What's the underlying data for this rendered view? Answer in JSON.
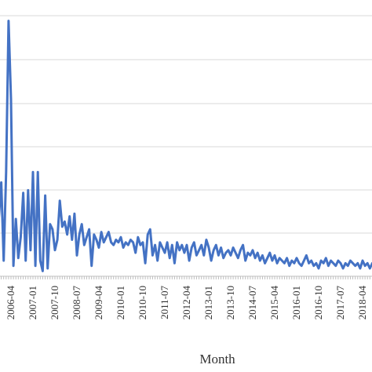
{
  "chart_data": {
    "type": "line",
    "title": "",
    "xlabel": "Month",
    "ylabel": "",
    "grid": true,
    "line_color": "#4472C4",
    "grid_color": "#D9D9D9",
    "ylim": [
      0,
      100
    ],
    "xlim": [
      "2005-08",
      "2019-01"
    ],
    "tick_labels": [
      "2006-04",
      "2007-01",
      "2007-10",
      "2008-07",
      "2009-04",
      "2010-01",
      "2010-10",
      "2011-07",
      "2012-04",
      "2013-01",
      "2013-10",
      "2014-07",
      "2015-04",
      "2016-01",
      "2016-10",
      "2017-07",
      "2018-04"
    ],
    "series": [
      {
        "values": [
          [
            "2005-08",
            32
          ],
          [
            "2005-09",
            12
          ],
          [
            "2005-10",
            48
          ],
          [
            "2005-11",
            22
          ],
          [
            "2005-12",
            36
          ],
          [
            "2006-01",
            6
          ],
          [
            "2006-02",
            40
          ],
          [
            "2006-03",
            98
          ],
          [
            "2006-04",
            68
          ],
          [
            "2006-05",
            4
          ],
          [
            "2006-06",
            22
          ],
          [
            "2006-07",
            7
          ],
          [
            "2006-08",
            15
          ],
          [
            "2006-09",
            32
          ],
          [
            "2006-10",
            6
          ],
          [
            "2006-11",
            33
          ],
          [
            "2006-12",
            10
          ],
          [
            "2007-01",
            40
          ],
          [
            "2007-02",
            4
          ],
          [
            "2007-03",
            40
          ],
          [
            "2007-04",
            6
          ],
          [
            "2007-05",
            2
          ],
          [
            "2007-06",
            31
          ],
          [
            "2007-07",
            3
          ],
          [
            "2007-08",
            20
          ],
          [
            "2007-09",
            18
          ],
          [
            "2007-10",
            10
          ],
          [
            "2007-11",
            14
          ],
          [
            "2007-12",
            29
          ],
          [
            "2008-01",
            19
          ],
          [
            "2008-02",
            21
          ],
          [
            "2008-03",
            16
          ],
          [
            "2008-04",
            23
          ],
          [
            "2008-05",
            14
          ],
          [
            "2008-06",
            24
          ],
          [
            "2008-07",
            8
          ],
          [
            "2008-08",
            16
          ],
          [
            "2008-09",
            20
          ],
          [
            "2008-10",
            12
          ],
          [
            "2008-11",
            15
          ],
          [
            "2008-12",
            18
          ],
          [
            "2009-01",
            4
          ],
          [
            "2009-02",
            16
          ],
          [
            "2009-03",
            14
          ],
          [
            "2009-04",
            11
          ],
          [
            "2009-05",
            17
          ],
          [
            "2009-06",
            13
          ],
          [
            "2009-07",
            15
          ],
          [
            "2009-08",
            17
          ],
          [
            "2009-09",
            13
          ],
          [
            "2009-10",
            12
          ],
          [
            "2009-11",
            14
          ],
          [
            "2009-12",
            13
          ],
          [
            "2010-01",
            15
          ],
          [
            "2010-02",
            11
          ],
          [
            "2010-03",
            13
          ],
          [
            "2010-04",
            12
          ],
          [
            "2010-05",
            14
          ],
          [
            "2010-06",
            13
          ],
          [
            "2010-07",
            9
          ],
          [
            "2010-08",
            15
          ],
          [
            "2010-09",
            12
          ],
          [
            "2010-10",
            13
          ],
          [
            "2010-11",
            5
          ],
          [
            "2010-12",
            16
          ],
          [
            "2011-01",
            18
          ],
          [
            "2011-02",
            8
          ],
          [
            "2011-03",
            12
          ],
          [
            "2011-04",
            6
          ],
          [
            "2011-05",
            13
          ],
          [
            "2011-06",
            11
          ],
          [
            "2011-07",
            9
          ],
          [
            "2011-08",
            13
          ],
          [
            "2011-09",
            7
          ],
          [
            "2011-10",
            12
          ],
          [
            "2011-11",
            5
          ],
          [
            "2011-12",
            13
          ],
          [
            "2012-01",
            10
          ],
          [
            "2012-02",
            12
          ],
          [
            "2012-03",
            9
          ],
          [
            "2012-04",
            12
          ],
          [
            "2012-05",
            6
          ],
          [
            "2012-06",
            11
          ],
          [
            "2012-07",
            13
          ],
          [
            "2012-08",
            8
          ],
          [
            "2012-09",
            10
          ],
          [
            "2012-10",
            12
          ],
          [
            "2012-11",
            8
          ],
          [
            "2012-12",
            14
          ],
          [
            "2013-01",
            11
          ],
          [
            "2013-02",
            6
          ],
          [
            "2013-03",
            10
          ],
          [
            "2013-04",
            12
          ],
          [
            "2013-05",
            8
          ],
          [
            "2013-06",
            11
          ],
          [
            "2013-07",
            7
          ],
          [
            "2013-08",
            9
          ],
          [
            "2013-09",
            10
          ],
          [
            "2013-10",
            8
          ],
          [
            "2013-11",
            11
          ],
          [
            "2013-12",
            9
          ],
          [
            "2014-01",
            7
          ],
          [
            "2014-02",
            10
          ],
          [
            "2014-03",
            12
          ],
          [
            "2014-04",
            6
          ],
          [
            "2014-05",
            9
          ],
          [
            "2014-06",
            8
          ],
          [
            "2014-07",
            10
          ],
          [
            "2014-08",
            7
          ],
          [
            "2014-09",
            9
          ],
          [
            "2014-10",
            6
          ],
          [
            "2014-11",
            8
          ],
          [
            "2014-12",
            5
          ],
          [
            "2015-01",
            7
          ],
          [
            "2015-02",
            9
          ],
          [
            "2015-03",
            6
          ],
          [
            "2015-04",
            8
          ],
          [
            "2015-05",
            5
          ],
          [
            "2015-06",
            7
          ],
          [
            "2015-07",
            6
          ],
          [
            "2015-08",
            5
          ],
          [
            "2015-09",
            7
          ],
          [
            "2015-10",
            4
          ],
          [
            "2015-11",
            6
          ],
          [
            "2015-12",
            5
          ],
          [
            "2016-01",
            7
          ],
          [
            "2016-02",
            5
          ],
          [
            "2016-03",
            4
          ],
          [
            "2016-04",
            6
          ],
          [
            "2016-05",
            8
          ],
          [
            "2016-06",
            5
          ],
          [
            "2016-07",
            6
          ],
          [
            "2016-08",
            4
          ],
          [
            "2016-09",
            5
          ],
          [
            "2016-10",
            3
          ],
          [
            "2016-11",
            6
          ],
          [
            "2016-12",
            5
          ],
          [
            "2017-01",
            7
          ],
          [
            "2017-02",
            4
          ],
          [
            "2017-03",
            6
          ],
          [
            "2017-04",
            5
          ],
          [
            "2017-05",
            4
          ],
          [
            "2017-06",
            6
          ],
          [
            "2017-07",
            5
          ],
          [
            "2017-08",
            3
          ],
          [
            "2017-09",
            5
          ],
          [
            "2017-10",
            4
          ],
          [
            "2017-11",
            6
          ],
          [
            "2017-12",
            5
          ],
          [
            "2018-01",
            4
          ],
          [
            "2018-02",
            5
          ],
          [
            "2018-03",
            3
          ],
          [
            "2018-04",
            6
          ],
          [
            "2018-05",
            4
          ],
          [
            "2018-06",
            5
          ],
          [
            "2018-07",
            3
          ],
          [
            "2018-08",
            5
          ],
          [
            "2018-09",
            4
          ],
          [
            "2018-10",
            6
          ],
          [
            "2018-11",
            3
          ],
          [
            "2018-12",
            5
          ],
          [
            "2019-01",
            8
          ]
        ]
      }
    ]
  }
}
